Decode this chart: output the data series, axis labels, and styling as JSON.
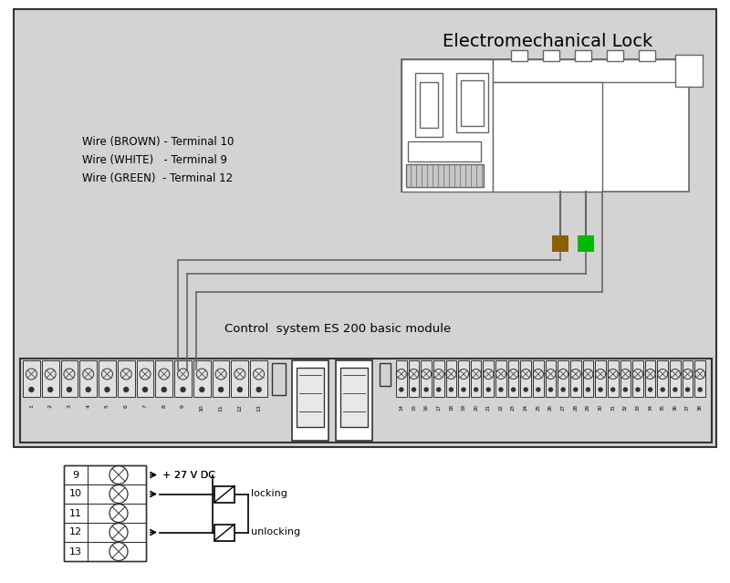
{
  "bg_color": "#d3d3d3",
  "fig_bg": "#ffffff",
  "title_lock": "Electromechanical Lock",
  "wire_labels": [
    "Wire (BROWN) - Terminal 10",
    "Wire (WHITE)   - Terminal 9",
    "Wire (GREEN)  - Terminal 12"
  ],
  "control_label": "Control  system ES 200 basic module",
  "brown_color": "#8B6000",
  "green_color": "#00BB00",
  "line_color": "#666666",
  "dark_color": "#333333",
  "term_numbers": [
    "1",
    "2",
    "3",
    "4",
    "5",
    "6",
    "7",
    "8",
    "9",
    "10",
    "11",
    "12",
    "13",
    "14",
    "15",
    "16",
    "17",
    "18",
    "19",
    "20",
    "21",
    "22",
    "23",
    "24",
    "25",
    "26",
    "27",
    "28",
    "29",
    "30",
    "31",
    "32",
    "33",
    "34",
    "35",
    "36",
    "37",
    "38"
  ]
}
